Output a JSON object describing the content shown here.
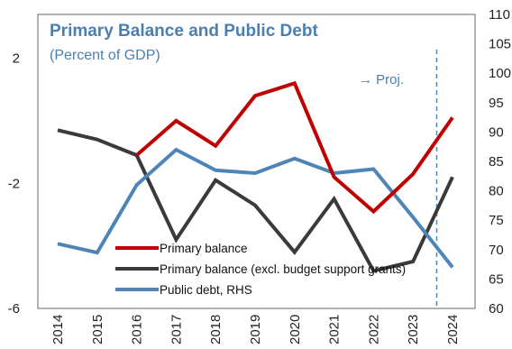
{
  "chart_data": {
    "type": "line",
    "title": "Primary Balance and Public Debt",
    "subtitle": "(Percent of GDP)",
    "annotation": "→ Proj.",
    "projection_start": 2023.6,
    "categories": [
      "2014",
      "2015",
      "2016",
      "2017",
      "2018",
      "2019",
      "2020",
      "2021",
      "2022",
      "2023",
      "2024"
    ],
    "y_left": {
      "ticks": [
        2,
        -2,
        -6
      ],
      "ylim": [
        -6,
        3.4
      ]
    },
    "y_right": {
      "ticks": [
        110,
        105,
        100,
        95,
        90,
        85,
        80,
        75,
        70,
        65,
        60
      ],
      "ylim": [
        60,
        110
      ]
    },
    "series": [
      {
        "name": "Primary balance",
        "axis": "left",
        "color": "#c00000",
        "values": [
          null,
          null,
          -1.1,
          0.0,
          -0.8,
          0.8,
          1.2,
          -1.8,
          -2.9,
          -1.7,
          0.1
        ]
      },
      {
        "name": "Primary balance (excl. budget support grants)",
        "axis": "left",
        "color": "#3a3a3a",
        "values": [
          -0.3,
          -0.6,
          -1.1,
          -3.8,
          -1.9,
          -2.7,
          -4.2,
          -2.5,
          -4.8,
          -4.5,
          -1.8
        ]
      },
      {
        "name": "Public debt, RHS",
        "axis": "right",
        "color": "#4f84b6",
        "values": [
          71,
          69.5,
          81,
          87,
          83.5,
          83,
          85.5,
          83,
          83.7,
          75.5,
          67
        ]
      }
    ],
    "legend_position": "bottom-left",
    "grid": false
  }
}
